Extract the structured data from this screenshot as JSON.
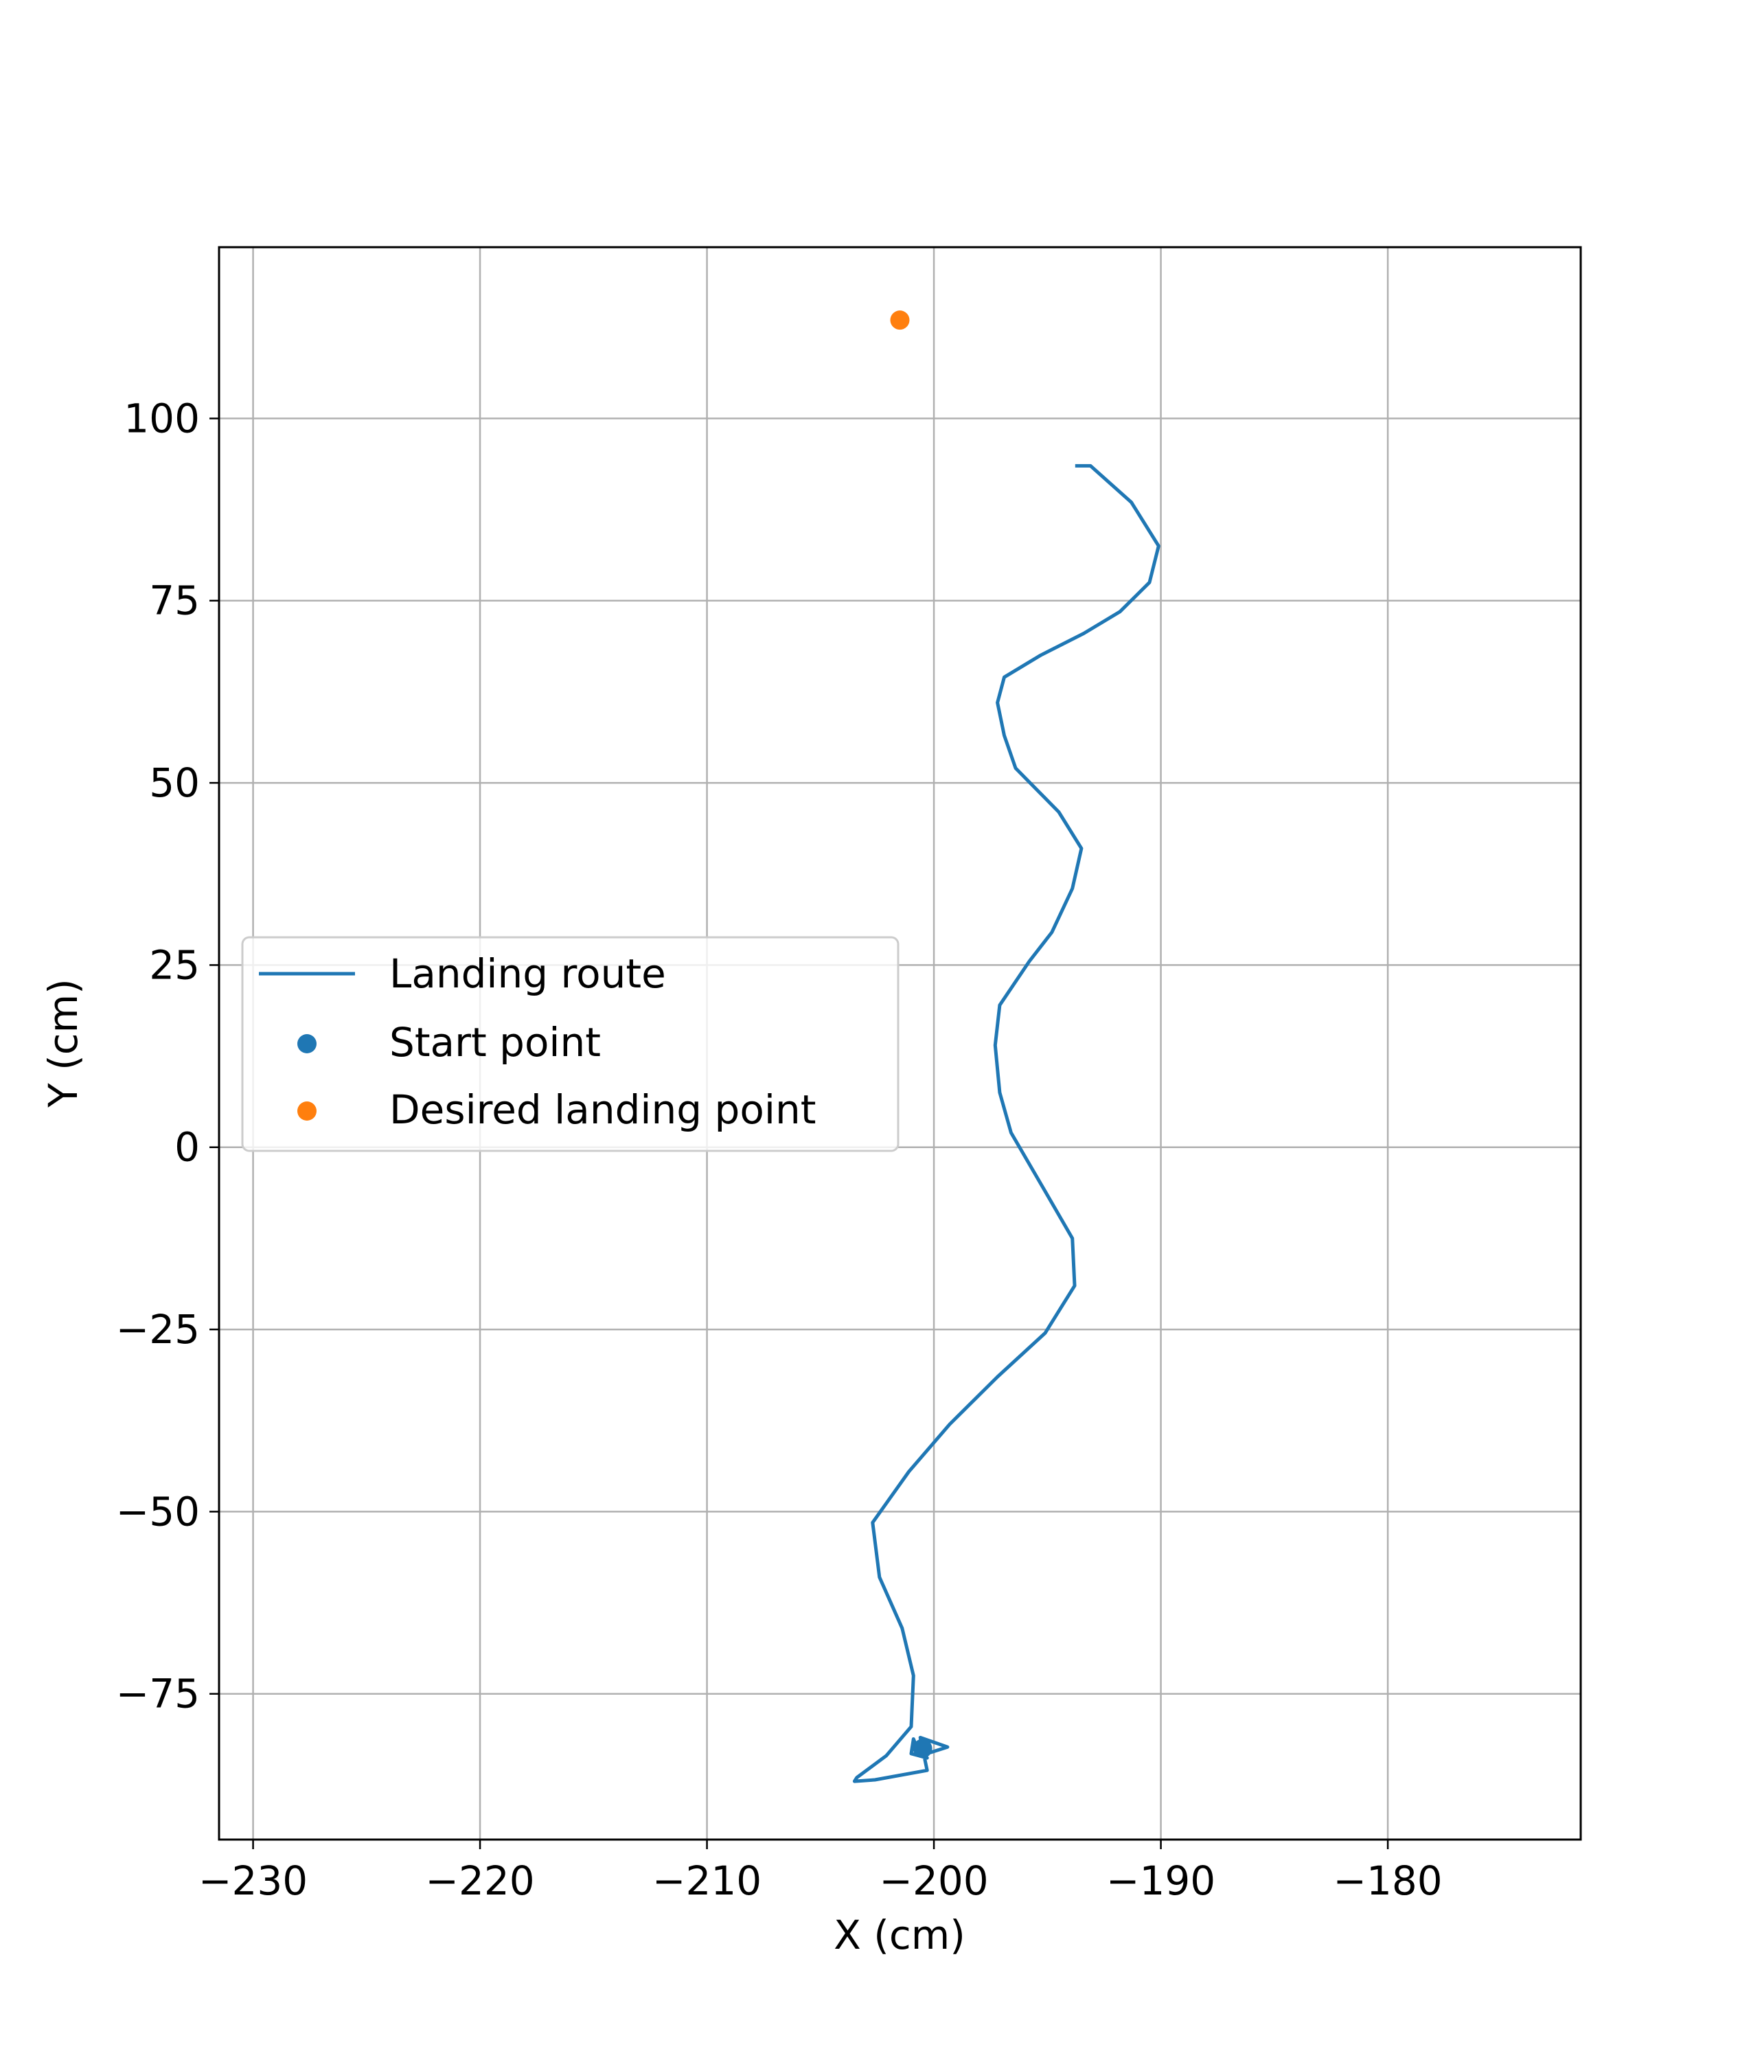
{
  "chart_data": {
    "type": "line",
    "title": "",
    "xlabel": "X (cm)",
    "ylabel": "Y (cm)",
    "xlim": [
      -231.5,
      -171.5
    ],
    "ylim": [
      -95,
      123.5
    ],
    "x_ticks": [
      -230,
      -220,
      -210,
      -200,
      -190,
      -180
    ],
    "y_ticks": [
      -75,
      -50,
      -25,
      0,
      25,
      50,
      75,
      100
    ],
    "x_tick_labels": [
      "−230",
      "−220",
      "−210",
      "−200",
      "−190",
      "−180"
    ],
    "y_tick_labels": [
      "−75",
      "−50",
      "−25",
      "0",
      "25",
      "50",
      "75",
      "100"
    ],
    "grid": true,
    "legend_position": "center-left",
    "series": [
      {
        "name": "Landing route",
        "kind": "line",
        "color": "#1f77b4",
        "x": [
          -193.7,
          -193.1,
          -191.3,
          -190.1,
          -190.5,
          -191.8,
          -193.4,
          -195.3,
          -196.9,
          -197.2,
          -196.9,
          -196.4,
          -194.5,
          -193.5,
          -193.9,
          -194.8,
          -195.8,
          -197.1,
          -197.3,
          -197.1,
          -196.6,
          -195.2,
          -193.9,
          -193.8,
          -195.1,
          -197.2,
          -199.3,
          -201.1,
          -202.7,
          -202.4,
          -201.4,
          -200.9,
          -201.0,
          -202.1,
          -203.4,
          -203.5,
          -202.6,
          -200.3,
          -200.6,
          -199.4,
          -200.6,
          -200.9,
          -201.0,
          -200.3,
          -200.8,
          -200.5
        ],
        "y": [
          93.5,
          93.5,
          88.5,
          82.5,
          77.5,
          73.5,
          70.5,
          67.5,
          64.5,
          61.0,
          56.5,
          52.0,
          46.0,
          41.0,
          35.5,
          29.5,
          25.5,
          19.5,
          14.0,
          7.5,
          2.0,
          -5.5,
          -12.5,
          -19.0,
          -25.5,
          -31.5,
          -38.0,
          -44.5,
          -51.5,
          -59.0,
          -66.0,
          -72.5,
          -79.5,
          -83.5,
          -86.5,
          -87.0,
          -86.8,
          -85.5,
          -81.0,
          -82.3,
          -83.5,
          -81.2,
          -83.2,
          -83.8,
          -82.0,
          -82.8
        ]
      },
      {
        "name": "Start point",
        "kind": "scatter",
        "color": "#1f77b4",
        "x": [
          -200.5
        ],
        "y": [
          -82.5
        ]
      },
      {
        "name": "Desired landing point",
        "kind": "scatter",
        "color": "#ff7f0e",
        "x": [
          -201.5
        ],
        "y": [
          113.5
        ]
      }
    ]
  }
}
